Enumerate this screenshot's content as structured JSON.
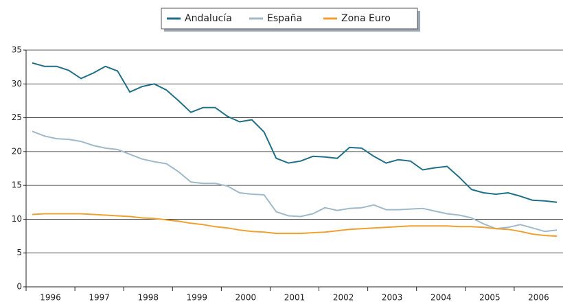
{
  "chart_data": {
    "type": "line",
    "categories": [
      "1996",
      null,
      null,
      null,
      "1997",
      null,
      null,
      null,
      "1998",
      null,
      null,
      null,
      "1999",
      null,
      null,
      null,
      "2000",
      null,
      null,
      null,
      "2001",
      null,
      null,
      null,
      "2002",
      null,
      null,
      null,
      "2003",
      null,
      null,
      null,
      "2004",
      null,
      null,
      null,
      "2005",
      null,
      null,
      null,
      "2006",
      null,
      null,
      null
    ],
    "series": [
      {
        "name": "Andalucía",
        "color": "#1f6f86",
        "values": [
          33.1,
          32.6,
          32.6,
          32.0,
          30.8,
          31.6,
          32.6,
          31.9,
          28.8,
          29.6,
          30.0,
          29.1,
          27.5,
          25.8,
          26.5,
          26.5,
          25.2,
          24.4,
          24.7,
          22.9,
          19.0,
          18.3,
          18.6,
          19.3,
          19.2,
          19.0,
          20.6,
          20.5,
          19.3,
          18.3,
          18.8,
          18.6,
          17.3,
          17.6,
          17.8,
          16.2,
          14.4,
          13.9,
          13.7,
          13.9,
          13.4,
          12.8,
          12.7,
          12.5
        ]
      },
      {
        "name": "España",
        "color": "#9fb9c8",
        "values": [
          23.0,
          22.3,
          21.9,
          21.8,
          21.5,
          20.9,
          20.5,
          20.3,
          19.6,
          18.9,
          18.5,
          18.2,
          17.0,
          15.5,
          15.3,
          15.3,
          14.9,
          13.9,
          13.7,
          13.6,
          11.1,
          10.5,
          10.4,
          10.8,
          11.7,
          11.3,
          11.6,
          11.7,
          12.1,
          11.4,
          11.4,
          11.5,
          11.6,
          11.2,
          10.8,
          10.6,
          10.2,
          9.3,
          8.6,
          8.8,
          9.2,
          8.7,
          8.2,
          8.4
        ]
      },
      {
        "name": "Zona Euro",
        "color": "#f0a030",
        "values": [
          10.7,
          10.8,
          10.8,
          10.8,
          10.8,
          10.7,
          10.6,
          10.5,
          10.4,
          10.2,
          10.1,
          9.9,
          9.7,
          9.4,
          9.2,
          8.9,
          8.7,
          8.4,
          8.2,
          8.1,
          7.9,
          7.9,
          7.9,
          8.0,
          8.1,
          8.3,
          8.5,
          8.6,
          8.7,
          8.8,
          8.9,
          9.0,
          9.0,
          9.0,
          9.0,
          8.9,
          8.9,
          8.8,
          8.6,
          8.5,
          8.2,
          7.8,
          7.6,
          7.5
        ]
      }
    ],
    "ylim": [
      0,
      35
    ],
    "yticks": [
      0,
      5,
      10,
      15,
      20,
      25,
      30,
      35
    ],
    "grid": true,
    "legend": "top"
  }
}
